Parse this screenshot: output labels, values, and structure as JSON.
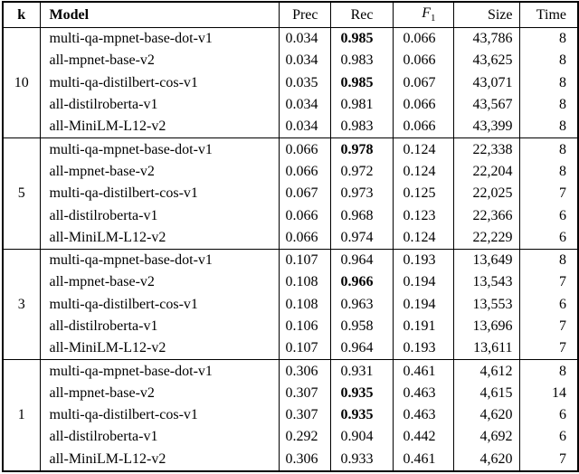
{
  "table": {
    "header": {
      "k": "k",
      "model": "Model",
      "prec": "Prec",
      "rec": "Rec",
      "f1": "F",
      "f1_sub": "1",
      "size": "Size",
      "time": "Time"
    },
    "groups": [
      {
        "k": "10",
        "rows": [
          {
            "model": "multi-qa-mpnet-base-dot-v1",
            "prec": "0.034",
            "rec": "0.985",
            "rec_bold": true,
            "f1": "0.066",
            "size": "43,786",
            "time": "8"
          },
          {
            "model": "all-mpnet-base-v2",
            "prec": "0.034",
            "rec": "0.983",
            "rec_bold": false,
            "f1": "0.066",
            "size": "43,625",
            "time": "8"
          },
          {
            "model": "multi-qa-distilbert-cos-v1",
            "prec": "0.035",
            "rec": "0.985",
            "rec_bold": true,
            "f1": "0.067",
            "size": "43,071",
            "time": "8"
          },
          {
            "model": "all-distilroberta-v1",
            "prec": "0.034",
            "rec": "0.981",
            "rec_bold": false,
            "f1": "0.066",
            "size": "43,567",
            "time": "8"
          },
          {
            "model": "all-MiniLM-L12-v2",
            "prec": "0.034",
            "rec": "0.983",
            "rec_bold": false,
            "f1": "0.066",
            "size": "43,399",
            "time": "8"
          }
        ]
      },
      {
        "k": "5",
        "rows": [
          {
            "model": "multi-qa-mpnet-base-dot-v1",
            "prec": "0.066",
            "rec": "0.978",
            "rec_bold": true,
            "f1": "0.124",
            "size": "22,338",
            "time": "8"
          },
          {
            "model": "all-mpnet-base-v2",
            "prec": "0.066",
            "rec": "0.972",
            "rec_bold": false,
            "f1": "0.124",
            "size": "22,204",
            "time": "8"
          },
          {
            "model": "multi-qa-distilbert-cos-v1",
            "prec": "0.067",
            "rec": "0.973",
            "rec_bold": false,
            "f1": "0.125",
            "size": "22,025",
            "time": "7"
          },
          {
            "model": "all-distilroberta-v1",
            "prec": "0.066",
            "rec": "0.968",
            "rec_bold": false,
            "f1": "0.123",
            "size": "22,366",
            "time": "6"
          },
          {
            "model": "all-MiniLM-L12-v2",
            "prec": "0.066",
            "rec": "0.974",
            "rec_bold": false,
            "f1": "0.124",
            "size": "22,229",
            "time": "6"
          }
        ]
      },
      {
        "k": "3",
        "rows": [
          {
            "model": "multi-qa-mpnet-base-dot-v1",
            "prec": "0.107",
            "rec": "0.964",
            "rec_bold": false,
            "f1": "0.193",
            "size": "13,649",
            "time": "8"
          },
          {
            "model": "all-mpnet-base-v2",
            "prec": "0.108",
            "rec": "0.966",
            "rec_bold": true,
            "f1": "0.194",
            "size": "13,543",
            "time": "7"
          },
          {
            "model": "multi-qa-distilbert-cos-v1",
            "prec": "0.108",
            "rec": "0.963",
            "rec_bold": false,
            "f1": "0.194",
            "size": "13,553",
            "time": "6"
          },
          {
            "model": "all-distilroberta-v1",
            "prec": "0.106",
            "rec": "0.958",
            "rec_bold": false,
            "f1": "0.191",
            "size": "13,696",
            "time": "7"
          },
          {
            "model": "all-MiniLM-L12-v2",
            "prec": "0.107",
            "rec": "0.964",
            "rec_bold": false,
            "f1": "0.193",
            "size": "13,611",
            "time": "7"
          }
        ]
      },
      {
        "k": "1",
        "rows": [
          {
            "model": "multi-qa-mpnet-base-dot-v1",
            "prec": "0.306",
            "rec": "0.931",
            "rec_bold": false,
            "f1": "0.461",
            "size": "4,612",
            "time": "8"
          },
          {
            "model": "all-mpnet-base-v2",
            "prec": "0.307",
            "rec": "0.935",
            "rec_bold": true,
            "f1": "0.463",
            "size": "4,615",
            "time": "14"
          },
          {
            "model": "multi-qa-distilbert-cos-v1",
            "prec": "0.307",
            "rec": "0.935",
            "rec_bold": true,
            "f1": "0.463",
            "size": "4,620",
            "time": "6"
          },
          {
            "model": "all-distilroberta-v1",
            "prec": "0.292",
            "rec": "0.904",
            "rec_bold": false,
            "f1": "0.442",
            "size": "4,692",
            "time": "6"
          },
          {
            "model": "all-MiniLM-L12-v2",
            "prec": "0.306",
            "rec": "0.933",
            "rec_bold": false,
            "f1": "0.461",
            "size": "4,620",
            "time": "7"
          }
        ]
      }
    ],
    "colors": {
      "border": "#000000",
      "background": "#ffffff",
      "text": "#000000"
    }
  }
}
